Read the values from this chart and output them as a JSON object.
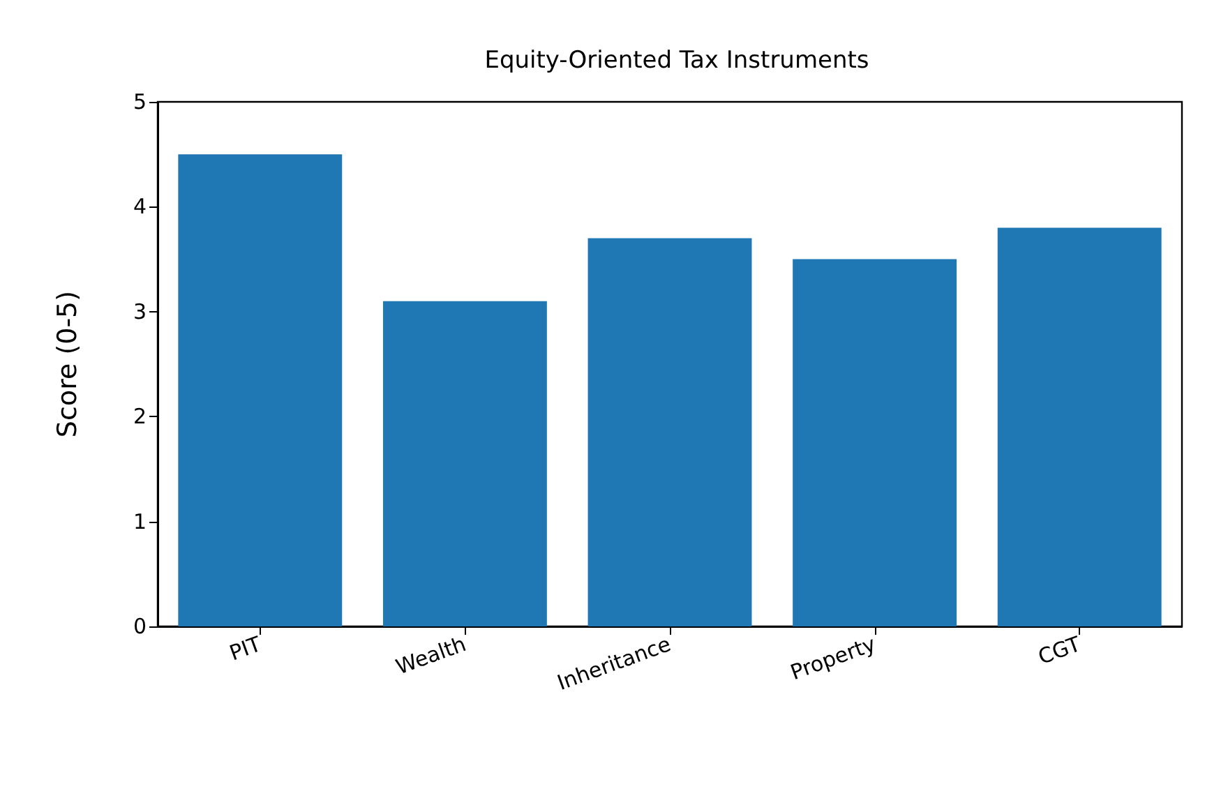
{
  "chart_data": {
    "type": "bar",
    "title": "Equity-Oriented Tax Instruments",
    "ylabel": "Score (0-5)",
    "categories": [
      "PIT",
      "Wealth",
      "Inheritance",
      "Property",
      "CGT"
    ],
    "values": [
      4.5,
      3.1,
      3.7,
      3.5,
      3.8
    ],
    "color": "#1f77b4",
    "ylim": [
      0,
      5
    ],
    "yticks": [
      0,
      1,
      2,
      3,
      4,
      5
    ],
    "grid": false
  }
}
